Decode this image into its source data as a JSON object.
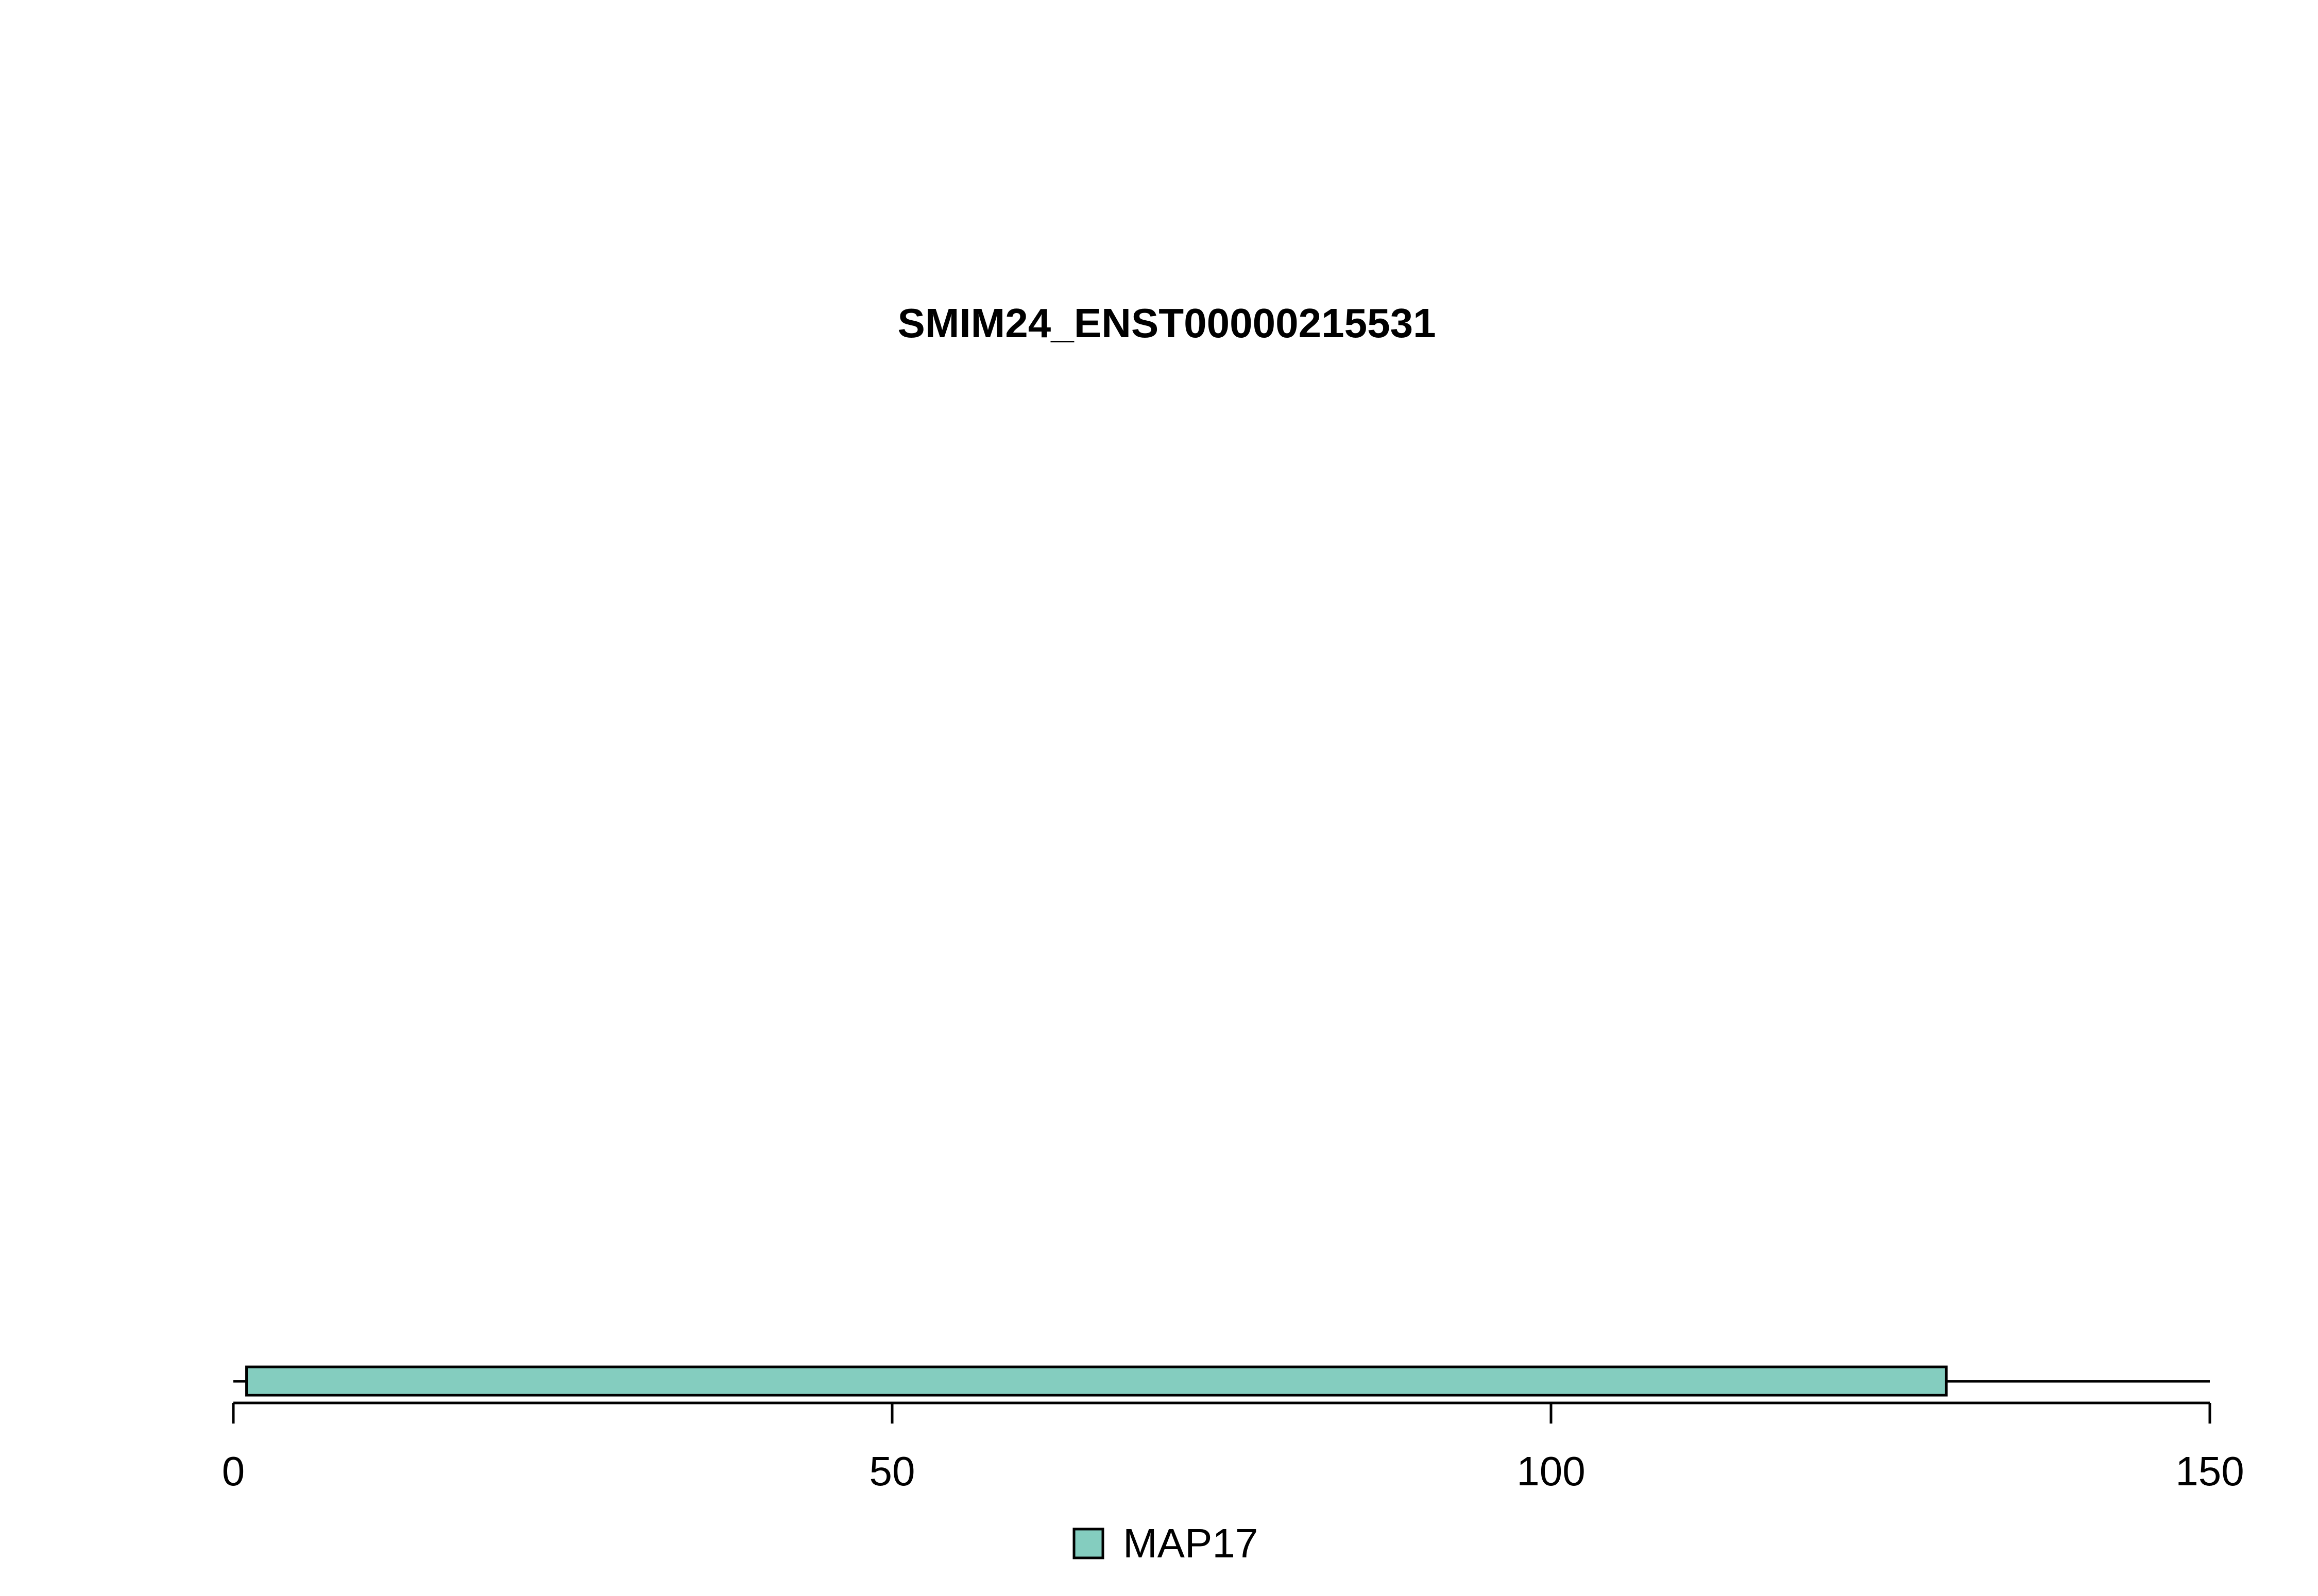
{
  "chart_data": {
    "type": "bar",
    "title": "SMIM24_ENST00000215531",
    "xlabel": "",
    "ylabel": "",
    "xlim": [
      0,
      150
    ],
    "xticks": [
      0,
      50,
      100,
      150
    ],
    "protein_length": 150,
    "domains": [
      {
        "name": "MAP17",
        "start": 1,
        "end": 130,
        "color": "#84cdbf"
      }
    ],
    "legend": [
      {
        "label": "MAP17",
        "color": "#84cdbf"
      }
    ],
    "legend_position": "bottom-center",
    "grid": false
  }
}
